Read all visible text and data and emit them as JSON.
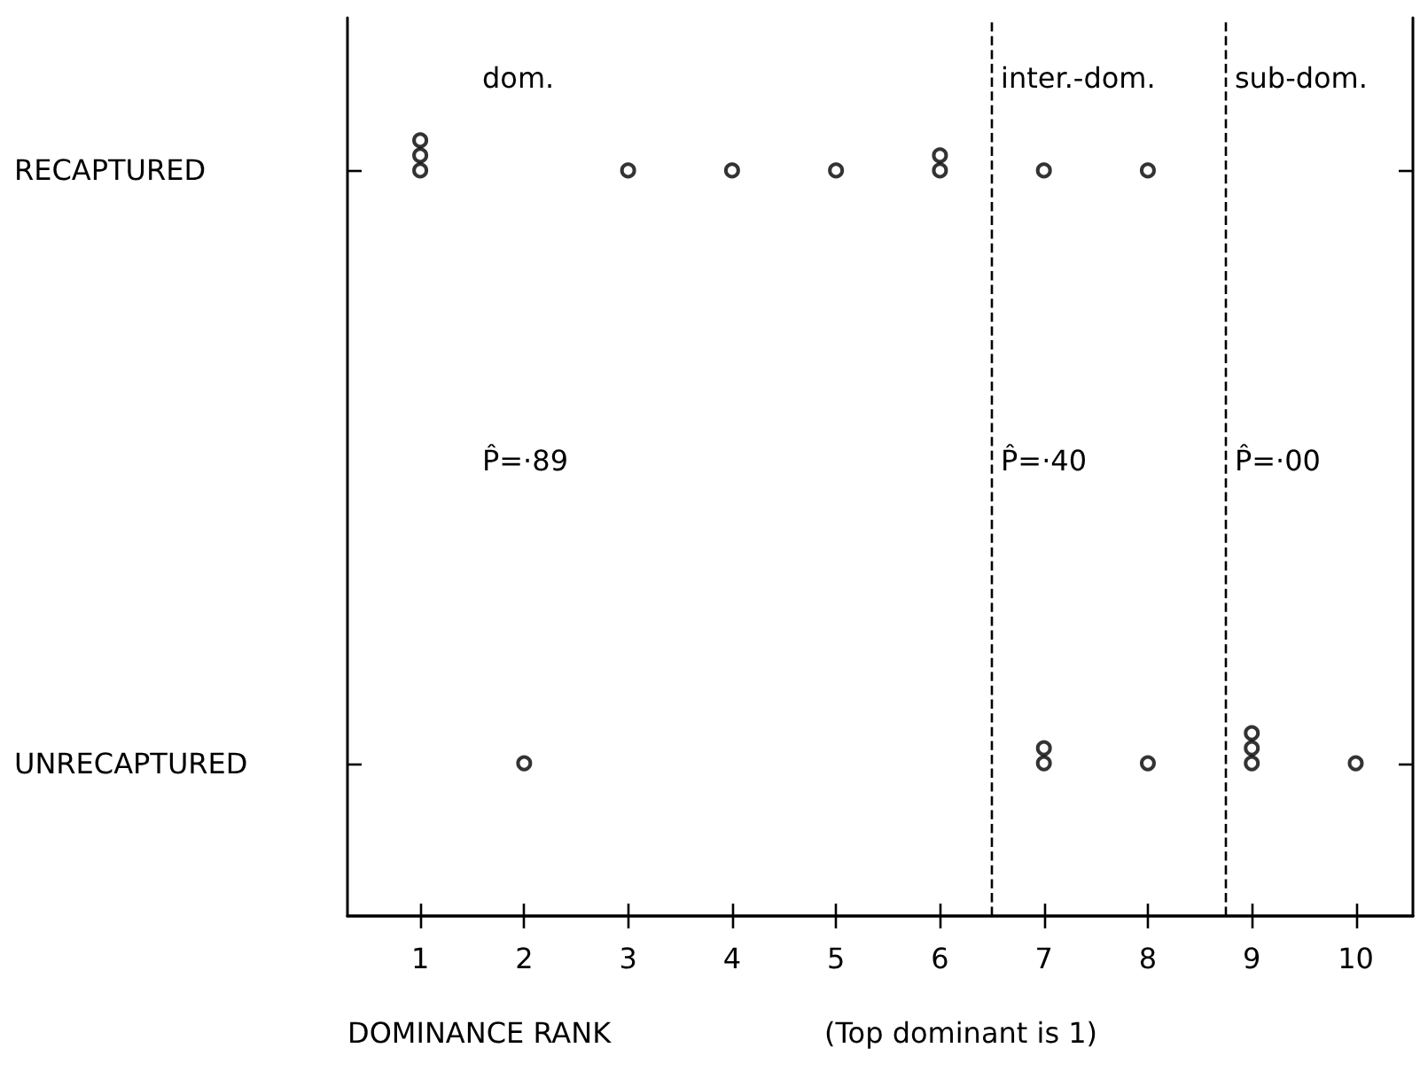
{
  "chart_data": {
    "type": "scatter",
    "orientation": "horizontal",
    "categories": [
      "RECAPTURED",
      "UNRECAPTURED"
    ],
    "xlabel": "DOMINANCE RANK",
    "xlim": [
      0.3,
      10.55
    ],
    "xticks": [
      1,
      2,
      3,
      4,
      5,
      6,
      7,
      8,
      9,
      10
    ],
    "marker": "circle",
    "grid": false,
    "series": [
      {
        "color": "#000000",
        "x": [
          "RECAPTURED",
          "RECAPTURED",
          "RECAPTURED",
          "RECAPTURED",
          "RECAPTURED",
          "RECAPTURED",
          "RECAPTURED",
          "RECAPTURED",
          "RECAPTURED",
          "RECAPTURED",
          "UNRECAPTURED",
          "UNRECAPTURED",
          "UNRECAPTURED",
          "UNRECAPTURED",
          "UNRECAPTURED",
          "UNRECAPTURED",
          "UNRECAPTURED",
          "UNRECAPTURED"
        ],
        "values": [
          1,
          1,
          1,
          3,
          4,
          5,
          6,
          6,
          7,
          8,
          2,
          7,
          7,
          8,
          9,
          9,
          9,
          10
        ]
      }
    ],
    "ref_lines": [
      {
        "axis": "x",
        "value": 6.5,
        "line_style": "dashed"
      },
      {
        "axis": "x",
        "value": 8.75,
        "line_style": "dashed"
      }
    ],
    "annotations": [
      "dom.",
      "inter.-dom.",
      "sub-dom.",
      "P̂=·89",
      "P̂=·40",
      "P̂=·00",
      "(Top dominant is 1)"
    ]
  }
}
